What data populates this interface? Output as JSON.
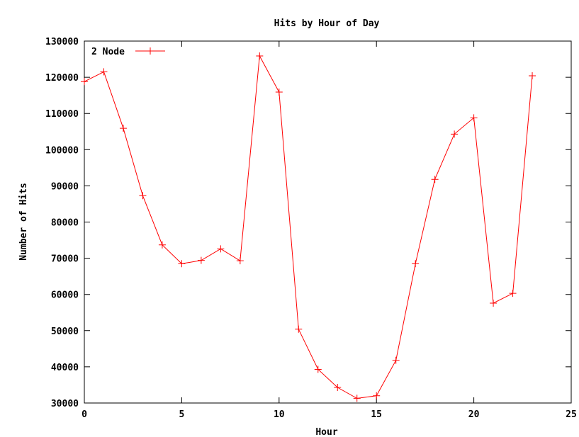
{
  "chart_data": {
    "type": "line",
    "title": "Hits by Hour of Day",
    "xlabel": "Hour",
    "ylabel": "Number of Hits",
    "xlim": [
      0,
      25
    ],
    "ylim": [
      30000,
      130000
    ],
    "x_ticks": [
      0,
      5,
      10,
      15,
      20,
      25
    ],
    "y_ticks": [
      30000,
      40000,
      50000,
      60000,
      70000,
      80000,
      90000,
      100000,
      110000,
      120000,
      130000
    ],
    "grid": false,
    "legend_position": "top-left",
    "series": [
      {
        "name": "2 Node",
        "color": "#ff0000",
        "marker": "plus",
        "x": [
          0,
          1,
          2,
          3,
          4,
          5,
          6,
          7,
          8,
          9,
          10,
          11,
          12,
          13,
          14,
          15,
          16,
          17,
          18,
          19,
          20,
          21,
          22,
          23
        ],
        "y": [
          118800,
          121500,
          105900,
          87300,
          73700,
          68500,
          69400,
          72600,
          69300,
          125900,
          115900,
          50400,
          39300,
          34300,
          31300,
          32000,
          41800,
          68500,
          91800,
          104300,
          108800,
          57600,
          60300,
          120400
        ]
      }
    ]
  }
}
